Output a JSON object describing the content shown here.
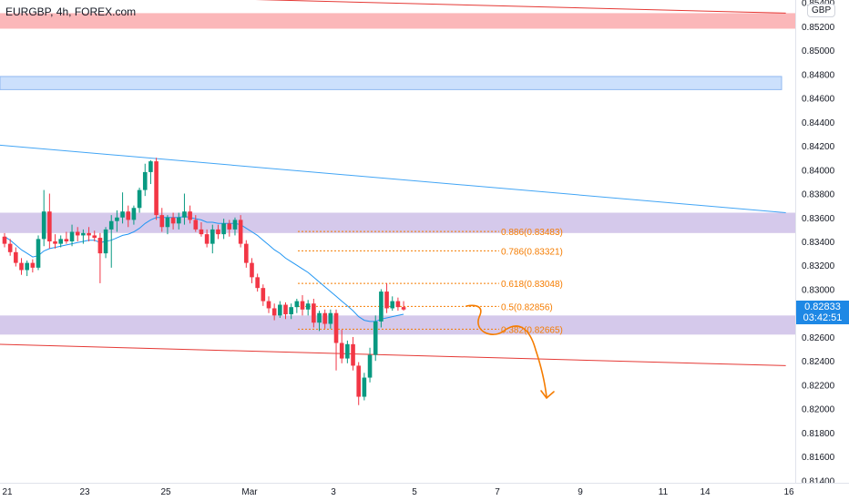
{
  "header": {
    "title": "EURGBP, 4h, FOREX.com"
  },
  "price_axis": {
    "currency_badge": "GBP",
    "current_price_label": "0.82833",
    "countdown_label": "03:42:51"
  },
  "colors": {
    "up": "#089981",
    "down": "#f23645",
    "ma": "#2196f3",
    "fib": "#f57c00",
    "zone": "#b39ddb",
    "resistance": "#f77c80",
    "blue_zone": "#bbd6fb",
    "trendline_red": "#e53935",
    "trendline_blue": "#42a5f5",
    "projection": "#f57c00"
  },
  "chart_data": {
    "type": "candlestick",
    "symbol": "EURGBP",
    "timeframe": "4h",
    "broker": "FOREX.com",
    "y_axis": {
      "range": [
        0.8138,
        0.8542
      ],
      "ticks": [
        "0.85400",
        "0.85200",
        "0.85000",
        "0.84800",
        "0.84600",
        "0.84400",
        "0.84200",
        "0.84000",
        "0.83800",
        "0.83600",
        "0.83400",
        "0.83200",
        "0.83000",
        "0.82800",
        "0.82600",
        "0.82400",
        "0.82200",
        "0.82000",
        "0.81800",
        "0.81600",
        "0.81400"
      ]
    },
    "x_axis": {
      "ticks": [
        "21",
        "23",
        "25",
        "Mar",
        "3",
        "5",
        "7",
        "9",
        "11",
        "14",
        "16"
      ]
    },
    "candles": [
      {
        "o": 0.8344,
        "h": 0.8347,
        "l": 0.8335,
        "c": 0.8338
      },
      {
        "o": 0.8338,
        "h": 0.8342,
        "l": 0.8328,
        "c": 0.8331
      },
      {
        "o": 0.8331,
        "h": 0.8335,
        "l": 0.8319,
        "c": 0.8322
      },
      {
        "o": 0.8322,
        "h": 0.8326,
        "l": 0.8312,
        "c": 0.8316
      },
      {
        "o": 0.8316,
        "h": 0.8324,
        "l": 0.8311,
        "c": 0.8322
      },
      {
        "o": 0.8322,
        "h": 0.8325,
        "l": 0.8314,
        "c": 0.8318
      },
      {
        "o": 0.8318,
        "h": 0.8345,
        "l": 0.8316,
        "c": 0.8342
      },
      {
        "o": 0.8342,
        "h": 0.8383,
        "l": 0.8336,
        "c": 0.8365
      },
      {
        "o": 0.8365,
        "h": 0.838,
        "l": 0.8334,
        "c": 0.834
      },
      {
        "o": 0.834,
        "h": 0.8346,
        "l": 0.8334,
        "c": 0.8338
      },
      {
        "o": 0.8338,
        "h": 0.8345,
        "l": 0.8335,
        "c": 0.8342
      },
      {
        "o": 0.8342,
        "h": 0.8348,
        "l": 0.8338,
        "c": 0.834
      },
      {
        "o": 0.834,
        "h": 0.8354,
        "l": 0.8336,
        "c": 0.8348
      },
      {
        "o": 0.8348,
        "h": 0.8352,
        "l": 0.834,
        "c": 0.8345
      },
      {
        "o": 0.8345,
        "h": 0.835,
        "l": 0.8338,
        "c": 0.8347
      },
      {
        "o": 0.8347,
        "h": 0.8352,
        "l": 0.834,
        "c": 0.8345
      },
      {
        "o": 0.8345,
        "h": 0.8349,
        "l": 0.834,
        "c": 0.8343
      },
      {
        "o": 0.8343,
        "h": 0.8347,
        "l": 0.8305,
        "c": 0.833
      },
      {
        "o": 0.833,
        "h": 0.8352,
        "l": 0.8326,
        "c": 0.835
      },
      {
        "o": 0.835,
        "h": 0.8362,
        "l": 0.8318,
        "c": 0.8357
      },
      {
        "o": 0.8357,
        "h": 0.8366,
        "l": 0.8348,
        "c": 0.836
      },
      {
        "o": 0.836,
        "h": 0.8381,
        "l": 0.8355,
        "c": 0.8365
      },
      {
        "o": 0.8365,
        "h": 0.837,
        "l": 0.8352,
        "c": 0.8358
      },
      {
        "o": 0.8358,
        "h": 0.837,
        "l": 0.8354,
        "c": 0.8368
      },
      {
        "o": 0.8368,
        "h": 0.8385,
        "l": 0.8364,
        "c": 0.8383
      },
      {
        "o": 0.8383,
        "h": 0.8405,
        "l": 0.8378,
        "c": 0.8398
      },
      {
        "o": 0.8398,
        "h": 0.8408,
        "l": 0.8388,
        "c": 0.8407
      },
      {
        "o": 0.8407,
        "h": 0.841,
        "l": 0.8358,
        "c": 0.8362
      },
      {
        "o": 0.8362,
        "h": 0.8368,
        "l": 0.8348,
        "c": 0.8352
      },
      {
        "o": 0.8352,
        "h": 0.8362,
        "l": 0.8346,
        "c": 0.836
      },
      {
        "o": 0.836,
        "h": 0.8364,
        "l": 0.835,
        "c": 0.8355
      },
      {
        "o": 0.8355,
        "h": 0.8364,
        "l": 0.835,
        "c": 0.836
      },
      {
        "o": 0.836,
        "h": 0.838,
        "l": 0.8354,
        "c": 0.8365
      },
      {
        "o": 0.8365,
        "h": 0.837,
        "l": 0.8355,
        "c": 0.8358
      },
      {
        "o": 0.8358,
        "h": 0.8362,
        "l": 0.8348,
        "c": 0.835
      },
      {
        "o": 0.835,
        "h": 0.8356,
        "l": 0.8344,
        "c": 0.8346
      },
      {
        "o": 0.8346,
        "h": 0.835,
        "l": 0.8335,
        "c": 0.8338
      },
      {
        "o": 0.8338,
        "h": 0.8354,
        "l": 0.833,
        "c": 0.835
      },
      {
        "o": 0.835,
        "h": 0.8354,
        "l": 0.8342,
        "c": 0.8346
      },
      {
        "o": 0.8346,
        "h": 0.8359,
        "l": 0.8342,
        "c": 0.8355
      },
      {
        "o": 0.8355,
        "h": 0.8358,
        "l": 0.8344,
        "c": 0.835
      },
      {
        "o": 0.835,
        "h": 0.836,
        "l": 0.8345,
        "c": 0.8358
      },
      {
        "o": 0.8358,
        "h": 0.8362,
        "l": 0.8335,
        "c": 0.8338
      },
      {
        "o": 0.8338,
        "h": 0.8341,
        "l": 0.8318,
        "c": 0.8322
      },
      {
        "o": 0.8322,
        "h": 0.8326,
        "l": 0.8305,
        "c": 0.831
      },
      {
        "o": 0.831,
        "h": 0.8313,
        "l": 0.8298,
        "c": 0.8301
      },
      {
        "o": 0.8301,
        "h": 0.8304,
        "l": 0.8286,
        "c": 0.829
      },
      {
        "o": 0.829,
        "h": 0.8294,
        "l": 0.828,
        "c": 0.8284
      },
      {
        "o": 0.8284,
        "h": 0.8288,
        "l": 0.8274,
        "c": 0.8278
      },
      {
        "o": 0.8278,
        "h": 0.829,
        "l": 0.8276,
        "c": 0.8287
      },
      {
        "o": 0.8287,
        "h": 0.8289,
        "l": 0.8275,
        "c": 0.8279
      },
      {
        "o": 0.8279,
        "h": 0.8288,
        "l": 0.8275,
        "c": 0.8285
      },
      {
        "o": 0.8285,
        "h": 0.8292,
        "l": 0.828,
        "c": 0.829
      },
      {
        "o": 0.829,
        "h": 0.8295,
        "l": 0.8278,
        "c": 0.8283
      },
      {
        "o": 0.8283,
        "h": 0.8291,
        "l": 0.8278,
        "c": 0.8288
      },
      {
        "o": 0.8288,
        "h": 0.8292,
        "l": 0.8268,
        "c": 0.8272
      },
      {
        "o": 0.8272,
        "h": 0.8282,
        "l": 0.8265,
        "c": 0.828
      },
      {
        "o": 0.828,
        "h": 0.8283,
        "l": 0.8267,
        "c": 0.8271
      },
      {
        "o": 0.8271,
        "h": 0.8283,
        "l": 0.8267,
        "c": 0.828
      },
      {
        "o": 0.828,
        "h": 0.8283,
        "l": 0.8232,
        "c": 0.8255
      },
      {
        "o": 0.8255,
        "h": 0.8266,
        "l": 0.8238,
        "c": 0.8242
      },
      {
        "o": 0.8242,
        "h": 0.8257,
        "l": 0.8238,
        "c": 0.8254
      },
      {
        "o": 0.8254,
        "h": 0.826,
        "l": 0.8232,
        "c": 0.8236
      },
      {
        "o": 0.8236,
        "h": 0.8239,
        "l": 0.8203,
        "c": 0.821
      },
      {
        "o": 0.821,
        "h": 0.823,
        "l": 0.8207,
        "c": 0.8226
      },
      {
        "o": 0.8226,
        "h": 0.8251,
        "l": 0.8222,
        "c": 0.8245
      },
      {
        "o": 0.8245,
        "h": 0.8278,
        "l": 0.824,
        "c": 0.8273
      },
      {
        "o": 0.8273,
        "h": 0.83,
        "l": 0.8268,
        "c": 0.8298
      },
      {
        "o": 0.8298,
        "h": 0.8305,
        "l": 0.828,
        "c": 0.8284
      },
      {
        "o": 0.8284,
        "h": 0.8294,
        "l": 0.8282,
        "c": 0.829
      },
      {
        "o": 0.829,
        "h": 0.8293,
        "l": 0.8282,
        "c": 0.8285
      },
      {
        "o": 0.8285,
        "h": 0.829,
        "l": 0.8282,
        "c": 0.8283
      }
    ],
    "moving_average": [
      0.8344,
      0.8341,
      0.8337,
      0.8333,
      0.833,
      0.8327,
      0.8328,
      0.8332,
      0.8334,
      0.8335,
      0.8336,
      0.8337,
      0.8338,
      0.8339,
      0.834,
      0.8341,
      0.8341,
      0.8339,
      0.834,
      0.8341,
      0.8343,
      0.8345,
      0.8346,
      0.8348,
      0.8351,
      0.8355,
      0.8358,
      0.836,
      0.836,
      0.836,
      0.836,
      0.836,
      0.8361,
      0.836,
      0.8359,
      0.8358,
      0.8356,
      0.8356,
      0.8355,
      0.8355,
      0.8355,
      0.8355,
      0.8354,
      0.8351,
      0.8348,
      0.8345,
      0.8341,
      0.8337,
      0.8333,
      0.833,
      0.8326,
      0.8323,
      0.832,
      0.8317,
      0.8314,
      0.831,
      0.8306,
      0.8302,
      0.8298,
      0.8294,
      0.829,
      0.8286,
      0.8282,
      0.8277,
      0.8274,
      0.8273,
      0.8273,
      0.8275,
      0.8276,
      0.8277,
      0.8278,
      0.8279
    ],
    "fibonacci_levels": [
      {
        "label": "0.886(0.83483)",
        "price": 0.83483
      },
      {
        "label": "0.786(0.83321)",
        "price": 0.83321
      },
      {
        "label": "0.618(0.83048)",
        "price": 0.83048
      },
      {
        "label": "0.5(0.82856)",
        "price": 0.82856
      },
      {
        "label": "0.382(0.82665)",
        "price": 0.82665
      }
    ],
    "zones": [
      {
        "name": "resistance-zone",
        "from": 0.8518,
        "to": 0.8531
      },
      {
        "name": "supply-zone-blue",
        "from": 0.8467,
        "to": 0.8478
      },
      {
        "name": "upper-purple-zone",
        "from": 0.8347,
        "to": 0.8364
      },
      {
        "name": "lower-purple-zone",
        "from": 0.8262,
        "to": 0.8278
      }
    ],
    "trendlines": [
      {
        "name": "upper-red-trendline",
        "from": [
          -2,
          0.8548
        ],
        "to": [
          139,
          0.8531
        ]
      },
      {
        "name": "blue-descending-trendline",
        "from": [
          -2,
          0.8421
        ],
        "to": [
          139,
          0.8364
        ]
      },
      {
        "name": "lower-red-trendline",
        "from": [
          -2,
          0.8254
        ],
        "to": [
          139,
          0.8236
        ]
      }
    ]
  }
}
